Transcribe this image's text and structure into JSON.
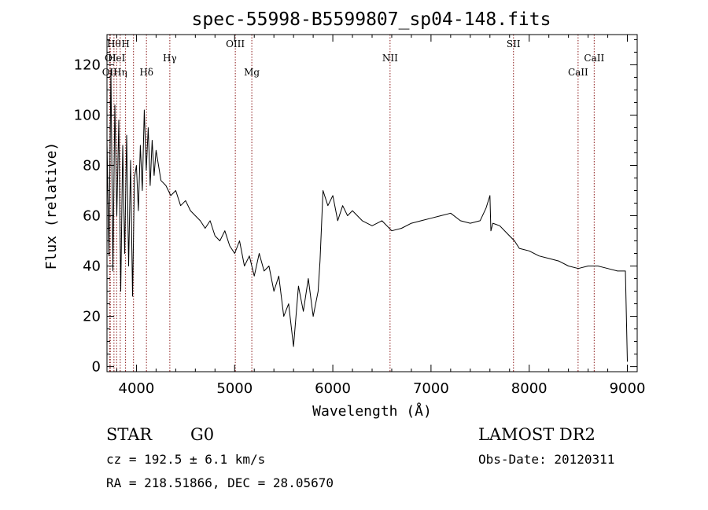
{
  "chart_data": {
    "type": "line",
    "title": "spec-55998-B5599807_sp04-148.fits",
    "xlabel": "Wavelength (Å)",
    "ylabel": "Flux (relative)",
    "xlim": [
      3700,
      9100
    ],
    "ylim": [
      -2,
      132
    ],
    "x_ticks": [
      4000,
      5000,
      6000,
      7000,
      8000,
      9000
    ],
    "y_ticks": [
      0,
      20,
      40,
      60,
      80,
      100,
      120
    ],
    "grid": false,
    "line_color": "#000000",
    "marker_color": "#8b1a1a",
    "series": [
      {
        "x": [
          3700,
          3720,
          3740,
          3760,
          3780,
          3800,
          3820,
          3840,
          3860,
          3880,
          3900,
          3920,
          3940,
          3960,
          3980,
          4000,
          4020,
          4040,
          4060,
          4080,
          4100,
          4120,
          4140,
          4160,
          4180,
          4200,
          4250,
          4300,
          4350,
          4400,
          4450,
          4500,
          4550,
          4600,
          4650,
          4700,
          4750,
          4800,
          4850,
          4900,
          4950,
          5000,
          5050,
          5100,
          5150,
          5200,
          5250,
          5300,
          5350,
          5400,
          5450,
          5500,
          5550,
          5600,
          5650,
          5700,
          5750,
          5800,
          5850,
          5870,
          5900,
          5950,
          6000,
          6050,
          6100,
          6150,
          6200,
          6300,
          6400,
          6500,
          6600,
          6700,
          6800,
          6900,
          7000,
          7100,
          7200,
          7300,
          7400,
          7500,
          7560,
          7600,
          7610,
          7630,
          7700,
          7800,
          7850,
          7900,
          8000,
          8100,
          8200,
          8300,
          8400,
          8500,
          8600,
          8700,
          8800,
          8900,
          8980,
          9000
        ],
        "y": [
          90,
          44,
          118,
          38,
          104,
          60,
          98,
          30,
          88,
          45,
          92,
          40,
          82,
          28,
          75,
          80,
          62,
          88,
          70,
          102,
          78,
          95,
          72,
          90,
          76,
          86,
          74,
          72,
          68,
          70,
          64,
          66,
          62,
          60,
          58,
          55,
          58,
          52,
          50,
          54,
          48,
          45,
          50,
          40,
          44,
          36,
          45,
          38,
          40,
          30,
          36,
          20,
          25,
          8,
          32,
          22,
          35,
          20,
          30,
          42,
          70,
          64,
          68,
          58,
          64,
          60,
          62,
          58,
          56,
          58,
          54,
          55,
          57,
          58,
          59,
          60,
          61,
          58,
          57,
          58,
          63,
          68,
          54,
          57,
          56,
          52,
          50,
          47,
          46,
          44,
          43,
          42,
          40,
          39,
          40,
          40,
          39,
          38,
          38,
          2
        ]
      }
    ],
    "line_markers": [
      {
        "wavelength": 3727,
        "label": "OII",
        "row": 2
      },
      {
        "wavelength": 3734,
        "label": "OI",
        "row": 1
      },
      {
        "wavelength": 3771,
        "label": "Hθ",
        "row": 0
      },
      {
        "wavelength": 3798,
        "label": "HeI",
        "row": 1
      },
      {
        "wavelength": 3835,
        "label": "Hη",
        "row": 2
      },
      {
        "wavelength": 3889,
        "label": "H",
        "row": 0
      },
      {
        "wavelength": 3970,
        "label": "",
        "row": 0
      },
      {
        "wavelength": 4102,
        "label": "Hδ",
        "row": 2
      },
      {
        "wavelength": 4340,
        "label": "Hγ",
        "row": 1
      },
      {
        "wavelength": 5007,
        "label": "OIII",
        "row": 0
      },
      {
        "wavelength": 5175,
        "label": "Mg",
        "row": 2
      },
      {
        "wavelength": 6583,
        "label": "NII",
        "row": 1
      },
      {
        "wavelength": 7840,
        "label": "SII",
        "row": 0
      },
      {
        "wavelength": 8498,
        "label": "CaII",
        "row": 2
      },
      {
        "wavelength": 8662,
        "label": "CaII",
        "row": 1
      }
    ]
  },
  "info": {
    "object_type": "STAR",
    "subclass": "G0",
    "survey": "LAMOST DR2",
    "cz_text": "cz = 192.5 ± 6.1 km/s",
    "obs_date_text": "Obs-Date: 20120311",
    "coords_text": "RA = 218.51866, DEC =  28.05670"
  }
}
